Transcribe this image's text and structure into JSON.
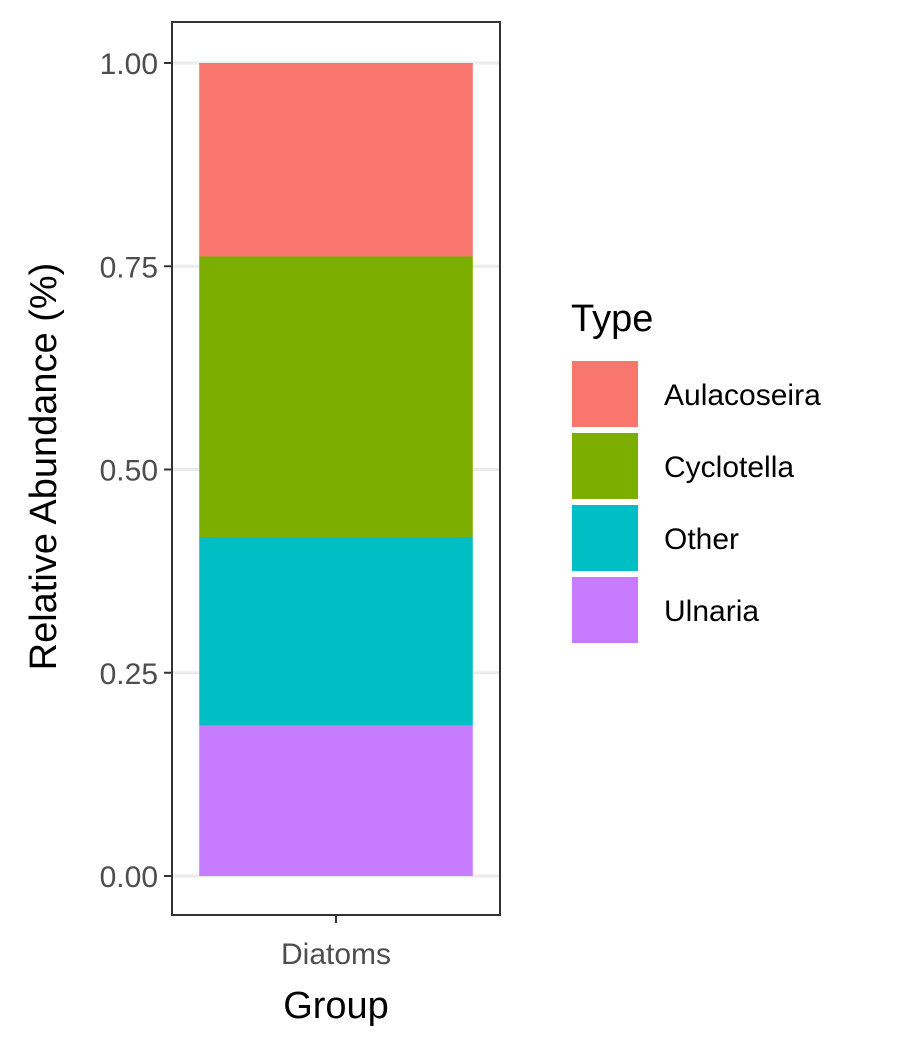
{
  "chart_data": {
    "type": "bar",
    "stacked": true,
    "categories": [
      "Diatoms"
    ],
    "series": [
      {
        "name": "Aulacoseira",
        "values": [
          0.238
        ],
        "color": "#F8766D"
      },
      {
        "name": "Cyclotella",
        "values": [
          0.345
        ],
        "color": "#7CAE00"
      },
      {
        "name": "Other",
        "values": [
          0.232
        ],
        "color": "#00BFC4"
      },
      {
        "name": "Ulnaria",
        "values": [
          0.185
        ],
        "color": "#C77CFF"
      }
    ],
    "xlabel": "Group",
    "ylabel": "Relative Abundance (%)",
    "ylim": [
      0,
      1
    ],
    "yticks": [
      "0.00",
      "0.25",
      "0.50",
      "0.75",
      "1.00"
    ],
    "legend": {
      "title": "Type",
      "position": "right"
    },
    "grid": true
  }
}
